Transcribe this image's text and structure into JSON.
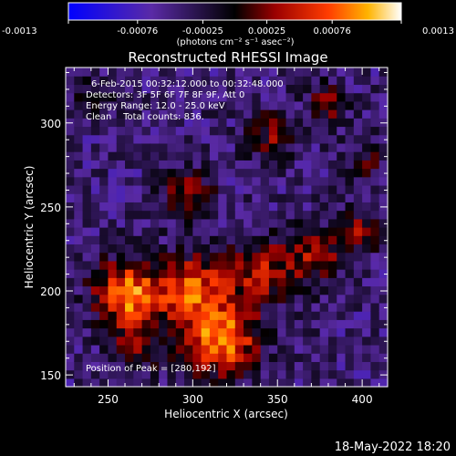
{
  "chart_data": {
    "type": "heatmap",
    "title": "Reconstructed RHESSI Image",
    "xlabel": "Heliocentric X (arcsec)",
    "ylabel": "Heliocentric Y (arcsec)",
    "xlim": [
      225,
      415
    ],
    "ylim": [
      143,
      333
    ],
    "xticks": [
      250,
      300,
      350,
      400
    ],
    "yticks": [
      150,
      200,
      250,
      300
    ],
    "colorbar": {
      "range": [
        -0.0013,
        0.0013
      ],
      "tick_labels": [
        "-0.0013",
        "-0.00076",
        "-0.00025",
        "0.00025",
        "0.00076",
        "0.0013"
      ],
      "tick_values": [
        -0.0013,
        -0.00076,
        -0.00025,
        0.00025,
        0.00076,
        0.0013
      ],
      "unit_label": "(photons cm⁻² s⁻¹ asec⁻²)"
    },
    "annotations": [
      "6-Feb-2015 00:32:12.000 to 00:32:48.000",
      "Detectors: 3F 5F 6F 7F 8F 9F, Att 0",
      "Energy Range: 12.0 - 25.0 keV",
      "Clean    Total counts: 836.",
      "Position of Peak = [280,192]"
    ],
    "peak": {
      "x": 280,
      "y": 192
    },
    "features": [
      {
        "x": 262,
        "y": 198,
        "sigma": 14,
        "amp": 0.0013
      },
      {
        "x": 318,
        "y": 170,
        "sigma": 15,
        "amp": 0.0013
      },
      {
        "x": 300,
        "y": 200,
        "sigma": 15,
        "amp": 0.0011
      },
      {
        "x": 340,
        "y": 212,
        "sigma": 14,
        "amp": 0.0008
      },
      {
        "x": 372,
        "y": 222,
        "sigma": 12,
        "amp": 0.0007
      },
      {
        "x": 398,
        "y": 235,
        "sigma": 9,
        "amp": 0.0006
      },
      {
        "x": 297,
        "y": 258,
        "sigma": 10,
        "amp": 0.0008
      },
      {
        "x": 347,
        "y": 292,
        "sigma": 11,
        "amp": 0.0006
      },
      {
        "x": 380,
        "y": 312,
        "sigma": 8,
        "amp": 0.0007
      },
      {
        "x": 268,
        "y": 166,
        "sigma": 11,
        "amp": 0.0005
      },
      {
        "x": 402,
        "y": 278,
        "sigma": 9,
        "amp": 0.0004
      },
      {
        "x": 240,
        "y": 318,
        "sigma": 9,
        "amp": 0.0003
      }
    ],
    "grid": false
  },
  "footer": {
    "timestamp": "18-May-2022 18:20"
  }
}
